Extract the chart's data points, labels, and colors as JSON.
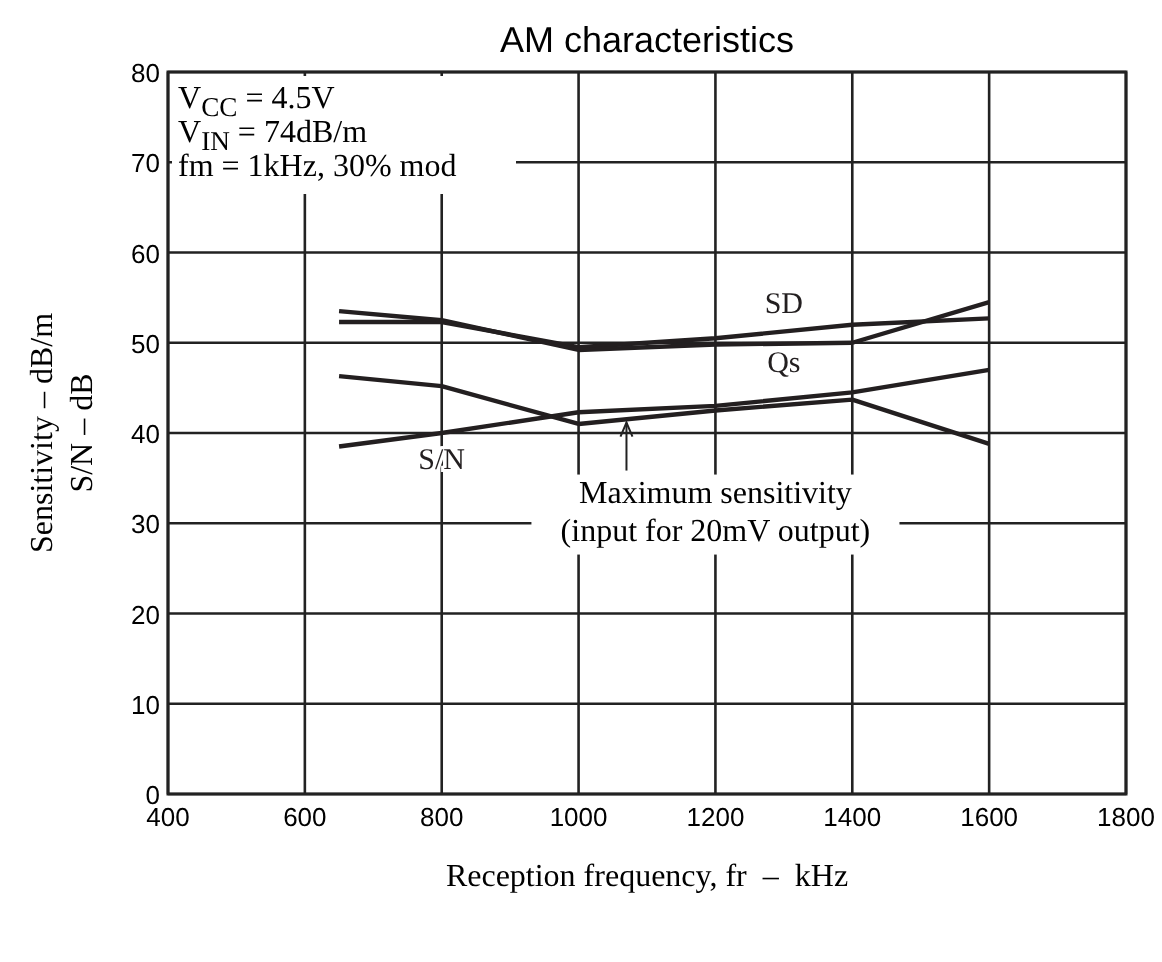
{
  "chart_data": {
    "type": "line",
    "title": "AM characteristics",
    "xlabel": "Reception frequency, fr  –  kHz",
    "ylabel": "Sensitivity  –  dB/m\nS/N  –  dB",
    "x": [
      650,
      800,
      1000,
      1200,
      1400,
      1600
    ],
    "series": [
      {
        "name": "SD",
        "color": "#231f20",
        "values": [
          52.3,
          52.3,
          49.5,
          50.5,
          52,
          52.7
        ]
      },
      {
        "name": "Qs",
        "color": "#231f20",
        "values": [
          53.5,
          52.5,
          49.2,
          49.8,
          50,
          54.5
        ]
      },
      {
        "name": "S/N",
        "color": "#231f20",
        "values": [
          38.5,
          40,
          42.3,
          43,
          44.5,
          47
        ]
      },
      {
        "color": "#231f20",
        "values": [
          46.3,
          45.2,
          41,
          42.5,
          43.7,
          38.8
        ]
      }
    ],
    "xlim": [
      400,
      1800
    ],
    "xticks": [
      400,
      600,
      800,
      1000,
      1200,
      1400,
      1600,
      1800
    ],
    "ylim": [
      0,
      80
    ],
    "yticks": [
      0,
      10,
      20,
      30,
      40,
      50,
      60,
      70,
      80
    ],
    "grid": true,
    "marker": "none",
    "line_style": "solid",
    "annotations": [
      "V$_{CC}$ = 4.5V",
      "V$_{IN}$ = 74dB/m",
      "fm = 1kHz, 30% mod",
      {
        "text": "Maximum sensitivity\n(input for 20mV output)",
        "x": 1070,
        "y": 41.6
      }
    ]
  }
}
